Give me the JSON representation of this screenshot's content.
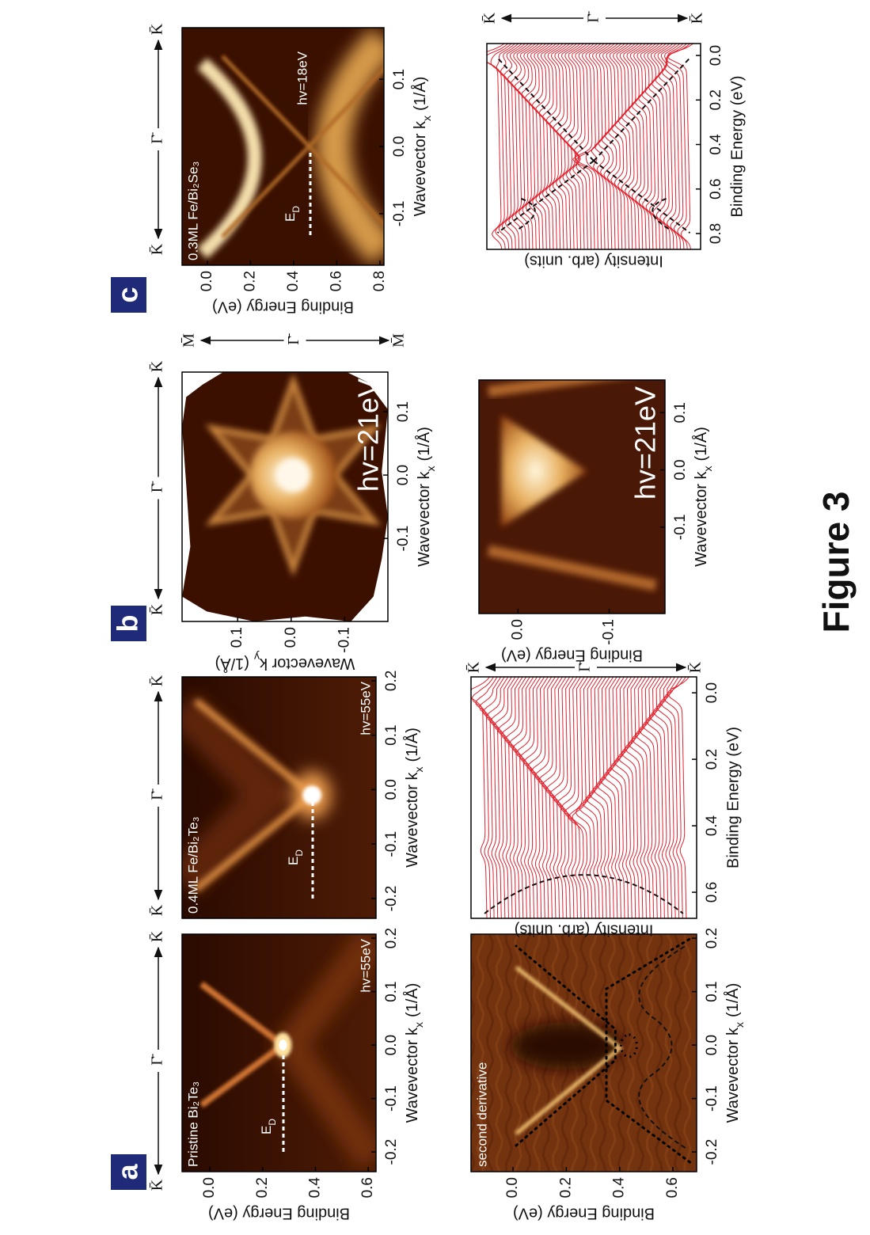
{
  "figure_label": "Figure 3",
  "panels": [
    {
      "letter": "a"
    },
    {
      "letter": "b"
    },
    {
      "letter": "c"
    }
  ],
  "plots": [
    {
      "annotation": "Pristine Bi₂Te₃",
      "photon_energy": "hv=55eV",
      "ed": {
        "main": "E",
        "sub": "D"
      },
      "top_axis": [
        "K̄",
        "Γ̄",
        "K̄"
      ],
      "y_label": "Binding Energy (eV)",
      "y_ticks": [
        "0.0",
        "0.2",
        "0.4",
        "0.6"
      ],
      "x_label": {
        "main": "Wavevector k",
        "sub": "x",
        "unit": "(1/Å)"
      },
      "x_ticks": [
        "-0.2",
        "-0.1",
        "0.0",
        "0.1",
        "0.2"
      ]
    },
    {
      "annotation": "0.4ML Fe/Bi₂Te₃",
      "photon_energy": "hv=55eV",
      "ed": {
        "main": "E",
        "sub": "D"
      },
      "top_axis": [
        "K̄",
        "Γ̄",
        "K̄"
      ],
      "x_label": {
        "main": "Wavevector k",
        "sub": "x",
        "unit": "(1/Å)"
      },
      "x_ticks": [
        "-0.2",
        "-0.1",
        "0.0",
        "0.1",
        "0.2"
      ]
    },
    {
      "annotation": "second derivative",
      "y_label": "Binding Energy (eV)",
      "y_ticks": [
        "0.0",
        "0.2",
        "0.4",
        "0.6"
      ],
      "x_label": {
        "main": "Wavevector k",
        "sub": "x",
        "unit": "(1/Å)"
      },
      "x_ticks": [
        "-0.2",
        "-0.1",
        "0.0",
        "0.1",
        "0.2"
      ]
    },
    {
      "y_label": "Intensity (arb. units)",
      "side_axis": [
        "K̄",
        "Γ̄",
        "K̄"
      ],
      "x_label": "Binding Energy (eV)",
      "x_ticks": [
        "0.6",
        "0.4",
        "0.2",
        "0.0"
      ]
    },
    {
      "photon_energy": "hv=21eV",
      "top_axis": [
        "K̄",
        "Γ̄",
        "K̄"
      ],
      "side_axis": [
        "M̄",
        "Γ̄",
        "M̄"
      ],
      "y_label": {
        "main": "Wavevector k",
        "sub": "y",
        "unit": "(1/Å)"
      },
      "y_ticks": [
        "0.1",
        "0.0",
        "-0.1"
      ],
      "x_label": {
        "main": "Wavevector k",
        "sub": "x",
        "unit": "(1/Å)"
      },
      "x_ticks": [
        "-0.1",
        "0.0",
        "0.1"
      ]
    },
    {
      "photon_energy": "hv=21eV",
      "y_label": "Binding Energy (eV)",
      "y_ticks": [
        "0.0",
        "-0.1"
      ],
      "x_label": {
        "main": "Wavevector k",
        "sub": "x",
        "unit": "(1/Å)"
      },
      "x_ticks": [
        "-0.1",
        "0.0",
        "0.1"
      ]
    },
    {
      "annotation": "0.3ML Fe/Bi₂Se₃",
      "photon_energy": "hv=18eV",
      "ed": {
        "main": "E",
        "sub": "D"
      },
      "top_axis": [
        "K̄",
        "Γ̄",
        "K̄"
      ],
      "y_label": "Binding Energy (eV)",
      "y_ticks": [
        "0.0",
        "0.2",
        "0.4",
        "0.6",
        "0.8"
      ],
      "x_label": {
        "main": "Wavevector k",
        "sub": "x",
        "unit": "(1/Å)"
      },
      "x_ticks": [
        "-0.1",
        "0.0",
        "0.1"
      ]
    },
    {
      "y_label": "Intensity (arb. units)",
      "side_axis": [
        "K̄",
        "Γ̄",
        "K̄"
      ],
      "x_label": "Binding Energy (eV)",
      "x_ticks": [
        "0.8",
        "0.6",
        "0.4",
        "0.2",
        "0.0"
      ]
    }
  ]
}
